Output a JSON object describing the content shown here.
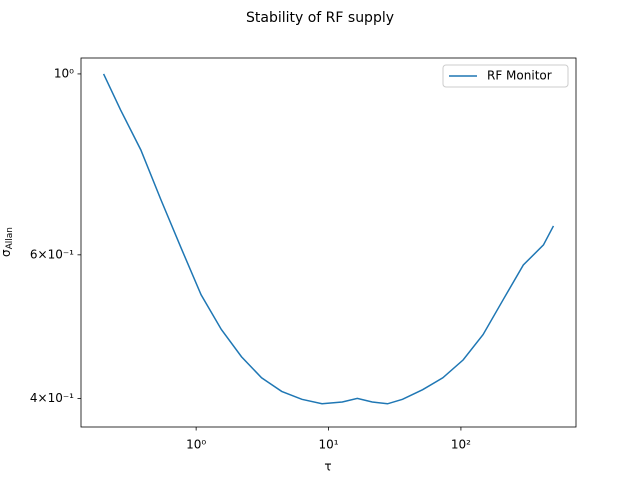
{
  "chart_data": {
    "type": "line",
    "title": "Stability of RF supply",
    "xlabel": "τ",
    "ylabel": {
      "symbol": "σ",
      "subscript": "Allan"
    },
    "x": [
      0.2,
      0.269,
      0.382,
      0.542,
      0.769,
      1.09,
      1.55,
      2.2,
      3.12,
      4.43,
      6.29,
      8.93,
      12.7,
      16.5,
      21.4,
      27.9,
      36.2,
      51.4,
      73.0,
      104,
      147,
      209,
      296,
      420,
      500
    ],
    "series": [
      {
        "name": "RF Monitor",
        "color": "#1f77b4",
        "values": [
          1.0,
          0.903,
          0.807,
          0.701,
          0.612,
          0.536,
          0.486,
          0.45,
          0.424,
          0.408,
          0.399,
          0.394,
          0.396,
          0.4,
          0.396,
          0.394,
          0.399,
          0.41,
          0.424,
          0.446,
          0.479,
          0.529,
          0.583,
          0.617,
          0.651
        ]
      }
    ],
    "xscale": "log",
    "yscale": "log",
    "xlim": [
      0.135,
      740
    ],
    "ylim": [
      0.369,
      1.046
    ],
    "xticks": [
      {
        "value": 1,
        "label": "10⁰"
      },
      {
        "value": 10,
        "label": "10¹"
      },
      {
        "value": 100,
        "label": "10²"
      }
    ],
    "yticks": [
      {
        "value": 0.4,
        "label": "4×10⁻¹"
      },
      {
        "value": 0.6,
        "label": "6×10⁻¹"
      },
      {
        "value": 1,
        "label": "10⁰"
      }
    ],
    "grid": false,
    "legend": "upper right"
  }
}
